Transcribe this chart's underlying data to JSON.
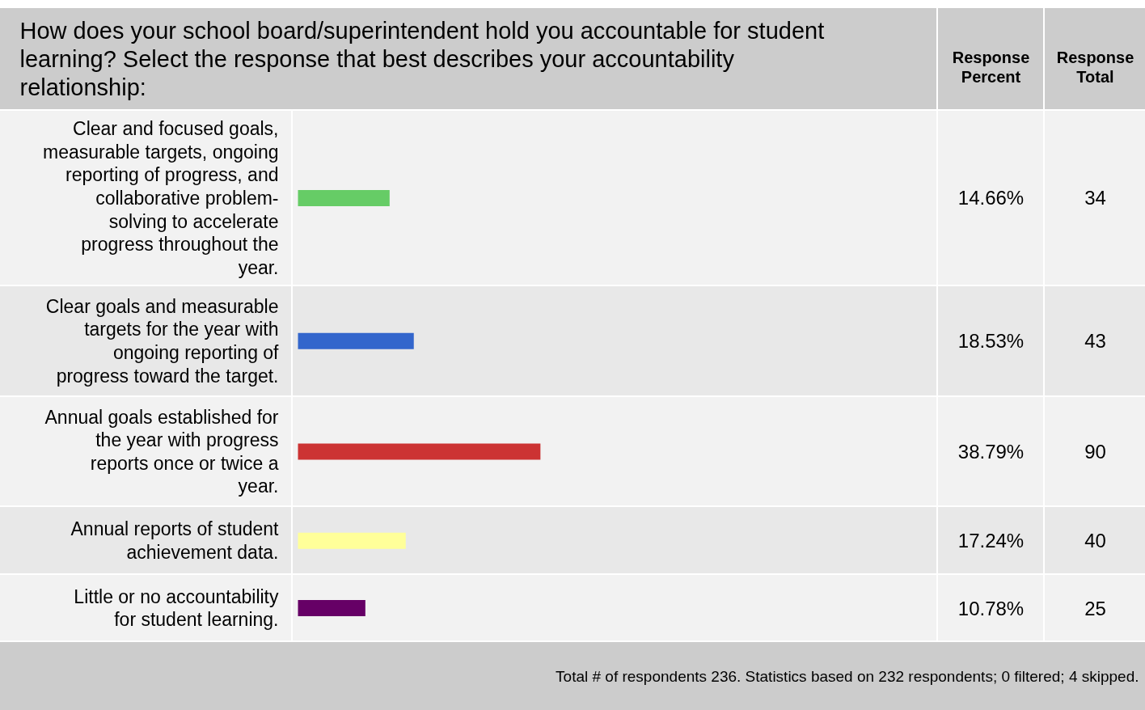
{
  "chart_data": {
    "type": "bar",
    "orientation": "horizontal",
    "title": "How does your school board/superintendent hold you accountable for student learning? Select the response that best describes your accountability relationship:",
    "categories": [
      "Clear and focused goals, measurable targets, ongoing reporting of progress, and collaborative problem-solving to accelerate progress throughout the year.",
      "Clear goals and measurable targets for the year with ongoing reporting of progress toward the target.",
      "Annual goals established for the year with progress reports once or twice a year.",
      "Annual reports of student achievement data.",
      "Little or no accountability for student learning."
    ],
    "values": [
      14.66,
      18.53,
      38.79,
      17.24,
      10.78
    ],
    "colors": [
      "#66cc66",
      "#3366cc",
      "#cc3333",
      "#ffff99",
      "#660066"
    ],
    "value_labels": [
      "14.66%",
      "18.53%",
      "38.79%",
      "17.24%",
      "10.78%"
    ],
    "annotations": [
      "Response Percent",
      "Response Total",
      "Total # of respondents 236. Statistics based on 232 respondents; 0 filtered; 4 skipped.",
      "34",
      "43",
      "90",
      "40",
      "25"
    ],
    "tick_labels": false
  }
}
